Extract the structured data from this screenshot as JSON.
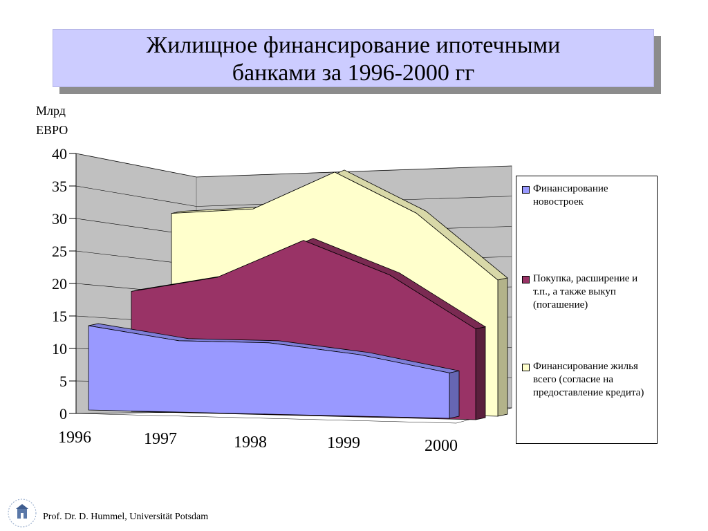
{
  "title": {
    "line1": "Жилищное финансирование ипотечными",
    "line2": "банками за 1996-2000 гг",
    "shadow_text": "банками за 1996-2000 гг"
  },
  "y_axis_unit": {
    "line1": "Млрд",
    "line2": "ЕВРО"
  },
  "footer": "Prof. Dr. D. Hummel, Universität Potsdam",
  "logo": {
    "icon": "university-seal-icon",
    "text": "Universität Potsdam"
  },
  "chart_data": {
    "type": "area",
    "style": "3d-stacked-depth",
    "categories": [
      "1996",
      "1997",
      "1998",
      "1999",
      "2000"
    ],
    "ylim": [
      0,
      40
    ],
    "yticks": [
      0,
      5,
      10,
      15,
      20,
      25,
      30,
      35,
      40
    ],
    "grid": true,
    "legend_position": "right",
    "series": [
      {
        "name": "Финансирование новостроек",
        "values": [
          13,
          11,
          11,
          9.5,
          7
        ],
        "color": "#9999ff"
      },
      {
        "name": "Покупка, расширение и т.п., а также выкуп (погашение)",
        "values": [
          18.5,
          21,
          27,
          22,
          14
        ],
        "color": "#993366"
      },
      {
        "name": "Финансирование жилья всего (согласие на предоставление кредита)",
        "values": [
          30,
          31,
          37,
          31,
          21
        ],
        "color": "#ffffcc"
      }
    ]
  }
}
